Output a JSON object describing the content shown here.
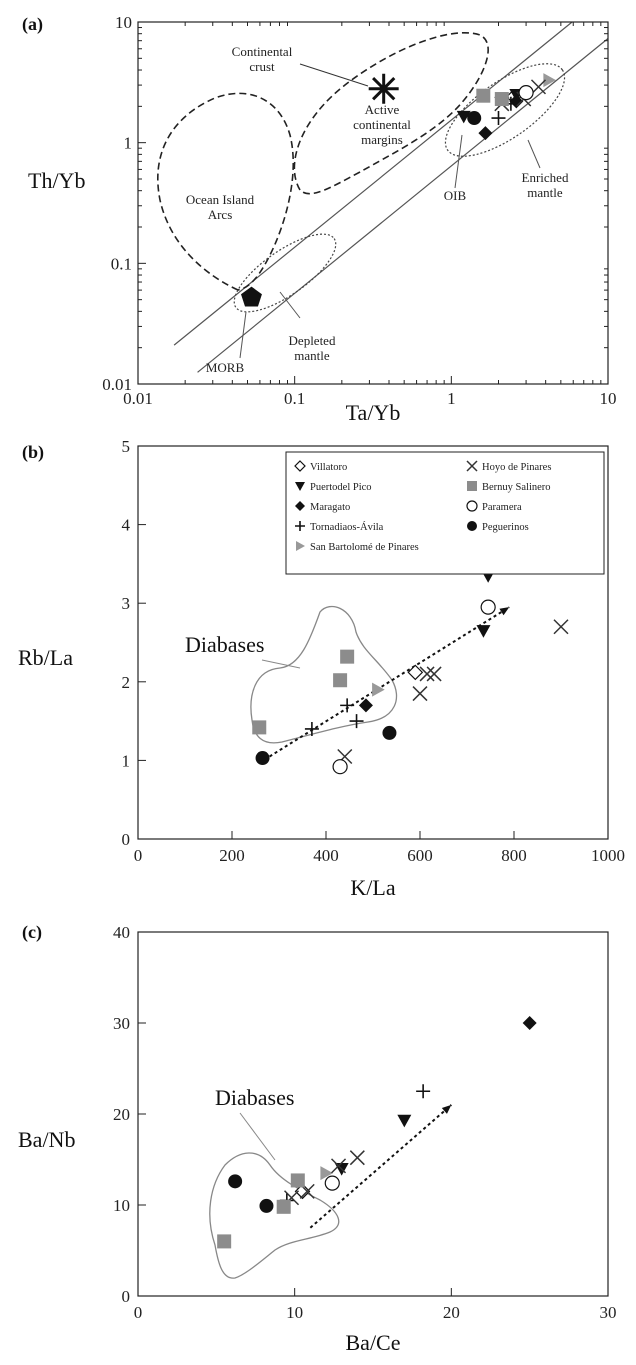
{
  "chart_data": [
    {
      "panel": "(a)",
      "type": "scatter",
      "xlabel": "Ta/Yb",
      "ylabel": "Th/Yb",
      "log_x": true,
      "log_y": true,
      "xlim": [
        0.01,
        10
      ],
      "ylim": [
        0.01,
        10
      ],
      "xticks": [
        "0.01",
        "0.1",
        "1",
        "10"
      ],
      "yticks": [
        "0.01",
        "0.1",
        "1",
        "10"
      ],
      "annotations": [
        "Continental crust",
        "Active continental margins",
        "Ocean Island Arcs",
        "Enriched mantle",
        "OIB",
        "Depleted mantle",
        "MORB"
      ],
      "reference_points": [
        {
          "name": "Continental crust",
          "marker": "asterisk",
          "x": 0.37,
          "y": 2.8
        },
        {
          "name": "MORB",
          "marker": "pentagon",
          "x": 0.053,
          "y": 0.052
        }
      ],
      "series": [
        {
          "name": "Villatoro",
          "marker": "diamond-open",
          "points": [
            [
              2.5,
              2.4
            ]
          ]
        },
        {
          "name": "Puertodel Pico",
          "marker": "triangle-down",
          "points": [
            [
              1.2,
              1.65
            ],
            [
              2.6,
              2.5
            ]
          ]
        },
        {
          "name": "Maragato",
          "marker": "diamond",
          "points": [
            [
              1.65,
              1.2
            ],
            [
              2.6,
              2.2
            ]
          ]
        },
        {
          "name": "Tornadiaos-Ávila",
          "marker": "plus",
          "points": [
            [
              2.0,
              1.6
            ],
            [
              2.4,
              2.1
            ]
          ]
        },
        {
          "name": "San Bartolomé de Pinares",
          "marker": "triangle-right",
          "points": [
            [
              4.2,
              3.3
            ]
          ]
        },
        {
          "name": "Hoyo de Pinares",
          "marker": "x",
          "points": [
            [
              2.1,
              2.1
            ],
            [
              2.9,
              2.3
            ],
            [
              3.6,
              2.9
            ]
          ]
        },
        {
          "name": "Bernuy Salinero",
          "marker": "square",
          "points": [
            [
              1.6,
              2.45
            ],
            [
              2.1,
              2.3
            ]
          ]
        },
        {
          "name": "Paramera",
          "marker": "circle-open",
          "points": [
            [
              3.0,
              2.6
            ]
          ]
        },
        {
          "name": "Peguerinos",
          "marker": "circle",
          "points": [
            [
              1.4,
              1.6
            ]
          ]
        }
      ]
    },
    {
      "panel": "(b)",
      "type": "scatter",
      "xlabel": "K/La",
      "ylabel": "Rb/La",
      "xlim": [
        0,
        1000
      ],
      "ylim": [
        0,
        5
      ],
      "xticks": [
        "0",
        "200",
        "400",
        "600",
        "800",
        "1000"
      ],
      "yticks": [
        "0",
        "1",
        "2",
        "3",
        "4",
        "5"
      ],
      "annotation": "Diabases",
      "trend_arrow": {
        "from": [
          280,
          1.05
        ],
        "to": [
          790,
          2.95
        ]
      },
      "series": [
        {
          "name": "Villatoro",
          "marker": "diamond-open",
          "points": [
            [
              590,
              2.12
            ]
          ]
        },
        {
          "name": "Puertodel Pico",
          "marker": "triangle-down",
          "points": [
            [
              745,
              3.35
            ],
            [
              735,
              2.65
            ]
          ]
        },
        {
          "name": "Maragato",
          "marker": "diamond",
          "points": [
            [
              485,
              1.7
            ]
          ]
        },
        {
          "name": "Tornadiaos-Ávila",
          "marker": "plus",
          "points": [
            [
              370,
              1.4
            ],
            [
              445,
              1.7
            ],
            [
              465,
              1.5
            ]
          ]
        },
        {
          "name": "San Bartolomé de Pinares",
          "marker": "triangle-right",
          "points": [
            [
              510,
              1.9
            ]
          ]
        },
        {
          "name": "Hoyo de Pinares",
          "marker": "x",
          "points": [
            [
              440,
              1.05
            ],
            [
              600,
              1.85
            ],
            [
              615,
              2.1
            ],
            [
              630,
              2.1
            ],
            [
              900,
              2.7
            ]
          ]
        },
        {
          "name": "Bernuy Salinero",
          "marker": "square",
          "points": [
            [
              258,
              1.42
            ],
            [
              430,
              2.02
            ],
            [
              445,
              2.32
            ]
          ]
        },
        {
          "name": "Paramera",
          "marker": "circle-open",
          "points": [
            [
              430,
              0.92
            ],
            [
              745,
              2.95
            ]
          ]
        },
        {
          "name": "Peguerinos",
          "marker": "circle",
          "points": [
            [
              265,
              1.03
            ],
            [
              535,
              1.35
            ]
          ]
        }
      ]
    },
    {
      "panel": "(c)",
      "type": "scatter",
      "xlabel": "Ba/Ce",
      "ylabel": "Ba/Nb",
      "xlim": [
        0,
        30
      ],
      "ylim": [
        0,
        40
      ],
      "xticks": [
        "0",
        "10",
        "20",
        "30"
      ],
      "yticks": [
        "0",
        "10",
        "20",
        "30",
        "40"
      ],
      "annotation": "Diabases",
      "trend_arrow": {
        "from": [
          11,
          7.5
        ],
        "to": [
          20,
          21
        ]
      },
      "series": [
        {
          "name": "Villatoro",
          "marker": "diamond-open",
          "points": [
            [
              10.5,
              11.5
            ]
          ]
        },
        {
          "name": "Puertodel Pico",
          "marker": "triangle-down",
          "points": [
            [
              17,
              19.3
            ],
            [
              13,
              14
            ]
          ]
        },
        {
          "name": "Maragato",
          "marker": "diamond",
          "points": [
            [
              25,
              30
            ]
          ]
        },
        {
          "name": "Tornadiaos-Ávila",
          "marker": "plus",
          "points": [
            [
              18.2,
              22.5
            ],
            [
              9.5,
              10.5
            ]
          ]
        },
        {
          "name": "San Bartolomé de Pinares",
          "marker": "triangle-right",
          "points": [
            [
              12,
              13.5
            ]
          ]
        },
        {
          "name": "Hoyo de Pinares",
          "marker": "x",
          "points": [
            [
              9.8,
              10.8
            ],
            [
              10.8,
              11.5
            ],
            [
              12.8,
              14.3
            ],
            [
              14,
              15.2
            ]
          ]
        },
        {
          "name": "Bernuy Salinero",
          "marker": "square",
          "points": [
            [
              5.5,
              6
            ],
            [
              9.3,
              9.8
            ],
            [
              10.2,
              12.7
            ]
          ]
        },
        {
          "name": "Paramera",
          "marker": "circle-open",
          "points": [
            [
              12.4,
              12.4
            ]
          ]
        },
        {
          "name": "Peguerinos",
          "marker": "circle",
          "points": [
            [
              6.2,
              12.6
            ],
            [
              8.2,
              9.9
            ]
          ]
        }
      ]
    }
  ],
  "legend": [
    {
      "label": "Villatoro",
      "marker": "diamond-open"
    },
    {
      "label": "Hoyo de Pinares",
      "marker": "x"
    },
    {
      "label": "Puertodel Pico",
      "marker": "triangle-down"
    },
    {
      "label": "Bernuy Salinero",
      "marker": "square"
    },
    {
      "label": "Maragato",
      "marker": "diamond"
    },
    {
      "label": "Paramera",
      "marker": "circle-open"
    },
    {
      "label": "Tornadiaos-Ávila",
      "marker": "plus"
    },
    {
      "label": "Peguerinos",
      "marker": "circle"
    },
    {
      "label": "San Bartolomé de Pinares",
      "marker": "triangle-right"
    }
  ]
}
